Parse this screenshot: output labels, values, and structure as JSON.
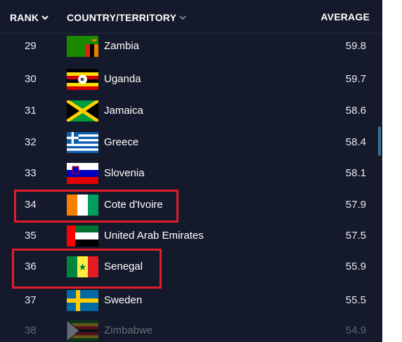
{
  "header": {
    "rank_label": "RANK",
    "country_label": "COUNTRY/TERRITORY",
    "average_label": "AVERAGE"
  },
  "rows": [
    {
      "rank": "29",
      "country": "Zambia",
      "average": "59.8",
      "flag_icon": "zambia-flag-icon"
    },
    {
      "rank": "30",
      "country": "Uganda",
      "average": "59.7",
      "flag_icon": "uganda-flag-icon"
    },
    {
      "rank": "31",
      "country": "Jamaica",
      "average": "58.6",
      "flag_icon": "jamaica-flag-icon"
    },
    {
      "rank": "32",
      "country": "Greece",
      "average": "58.4",
      "flag_icon": "greece-flag-icon"
    },
    {
      "rank": "33",
      "country": "Slovenia",
      "average": "58.1",
      "flag_icon": "slovenia-flag-icon"
    },
    {
      "rank": "34",
      "country": "Cote d'Ivoire",
      "average": "57.9",
      "flag_icon": "cote-divoire-flag-icon",
      "highlighted": true
    },
    {
      "rank": "35",
      "country": "United Arab Emirates",
      "average": "57.5",
      "flag_icon": "uae-flag-icon"
    },
    {
      "rank": "36",
      "country": "Senegal",
      "average": "55.9",
      "flag_icon": "senegal-flag-icon",
      "highlighted": true
    },
    {
      "rank": "37",
      "country": "Sweden",
      "average": "55.5",
      "flag_icon": "sweden-flag-icon"
    },
    {
      "rank": "38",
      "country": "Zimbabwe",
      "average": "54.9",
      "flag_icon": "zimbabwe-flag-icon"
    }
  ],
  "colors": {
    "background": "#141a2b",
    "highlight": "#e11d2a",
    "scrollbar": "#3b6f98"
  }
}
